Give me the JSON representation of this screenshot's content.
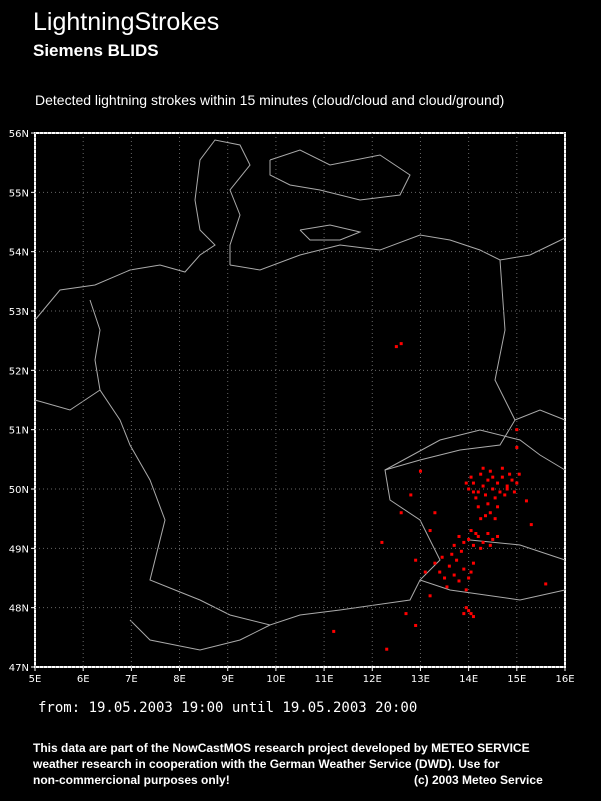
{
  "header": {
    "title": "LightningStrokes",
    "subtitle": "Siemens BLIDS",
    "caption": "Detected lightning strokes within 15 minutes (cloud/cloud and cloud/ground)"
  },
  "map": {
    "xlim": [
      5,
      16
    ],
    "ylim": [
      47,
      56
    ],
    "xticks": [
      {
        "value": 5,
        "label": "5E"
      },
      {
        "value": 6,
        "label": "6E"
      },
      {
        "value": 7,
        "label": "7E"
      },
      {
        "value": 8,
        "label": "8E"
      },
      {
        "value": 9,
        "label": "9E"
      },
      {
        "value": 10,
        "label": "10E"
      },
      {
        "value": 11,
        "label": "11E"
      },
      {
        "value": 12,
        "label": "12E"
      },
      {
        "value": 13,
        "label": "13E"
      },
      {
        "value": 14,
        "label": "14E"
      },
      {
        "value": 15,
        "label": "15E"
      },
      {
        "value": 16,
        "label": "16E"
      }
    ],
    "yticks": [
      {
        "value": 47,
        "label": "47N"
      },
      {
        "value": 48,
        "label": "48N"
      },
      {
        "value": 49,
        "label": "49N"
      },
      {
        "value": 50,
        "label": "50N"
      },
      {
        "value": 51,
        "label": "51N"
      },
      {
        "value": 52,
        "label": "52N"
      },
      {
        "value": 53,
        "label": "53N"
      },
      {
        "value": 54,
        "label": "54N"
      },
      {
        "value": 55,
        "label": "55N"
      },
      {
        "value": 56,
        "label": "56N"
      }
    ],
    "grid": true,
    "strikes": {
      "color": "#ff0000",
      "lon": [
        14.0,
        14.1,
        14.2,
        14.3,
        14.4,
        14.5,
        14.6,
        14.7,
        14.8,
        14.9,
        15.0,
        14.25,
        14.45,
        14.35,
        14.55,
        14.65,
        14.15,
        14.05,
        14.75,
        14.85,
        14.95,
        14.4,
        14.6,
        14.2,
        14.5,
        14.3,
        14.7,
        14.1,
        13.95,
        14.8,
        15.05,
        14.45,
        14.35,
        14.55,
        14.25,
        13.8,
        13.9,
        14.0,
        14.1,
        14.2,
        14.3,
        14.4,
        14.5,
        14.6,
        13.7,
        14.05,
        14.25,
        14.45,
        13.85,
        14.15,
        13.4,
        13.5,
        13.6,
        13.7,
        13.8,
        13.9,
        14.0,
        14.1,
        13.55,
        13.75,
        13.95,
        14.05,
        13.65,
        13.3,
        13.45,
        13.9,
        14.0,
        14.1,
        14.05,
        13.95,
        12.6,
        12.8,
        13.0,
        12.2,
        12.9,
        13.1,
        15.3,
        15.6,
        12.7,
        13.2,
        15.0,
        15.0,
        12.5,
        12.6,
        11.2,
        12.3,
        12.9,
        15.2,
        13.3,
        13.2
      ],
      "lat": [
        50.0,
        50.1,
        49.95,
        50.05,
        50.15,
        50.0,
        50.1,
        50.2,
        50.05,
        50.15,
        50.1,
        50.25,
        50.3,
        49.9,
        49.85,
        49.95,
        49.85,
        50.2,
        49.9,
        50.25,
        49.95,
        49.75,
        49.7,
        49.7,
        50.2,
        50.35,
        50.35,
        49.95,
        50.1,
        50.0,
        50.25,
        49.6,
        49.55,
        49.5,
        49.5,
        49.2,
        49.1,
        49.15,
        49.05,
        49.2,
        49.1,
        49.25,
        49.15,
        49.2,
        49.05,
        49.3,
        49.0,
        49.05,
        48.95,
        49.25,
        48.6,
        48.5,
        48.7,
        48.55,
        48.45,
        48.65,
        48.5,
        48.75,
        48.35,
        48.8,
        48.3,
        48.6,
        48.9,
        48.75,
        48.85,
        47.9,
        47.95,
        47.85,
        47.9,
        48.0,
        49.6,
        49.9,
        50.3,
        49.1,
        48.8,
        48.6,
        49.4,
        48.4,
        47.9,
        48.2,
        50.7,
        51.0,
        52.4,
        52.45,
        47.6,
        47.3,
        47.7,
        49.8,
        49.6,
        49.3
      ]
    }
  },
  "period": "from: 19.05.2003 19:00 until 19.05.2003 20:00",
  "footer": {
    "lines": [
      "This data are part of the NowCastMOS research project developed by METEO SERVICE",
      "weather research in cooperation with the German Weather Service (DWD). Use for",
      "non-commercional purposes only!"
    ],
    "copyright": "(c) 2003 Meteo Service"
  }
}
